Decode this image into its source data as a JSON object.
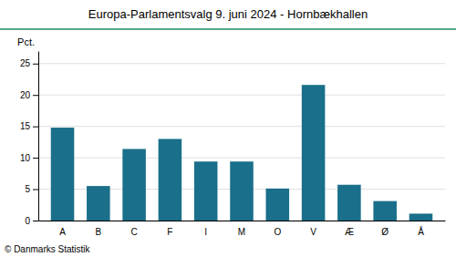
{
  "chart_data": {
    "type": "bar",
    "title": "Europa-Parlamentsvalg 9. juni 2024 - Hornbækhallen",
    "ylabel": "Pct.",
    "footer": "© Danmarks Statistik",
    "categories": [
      "A",
      "B",
      "C",
      "F",
      "I",
      "M",
      "O",
      "V",
      "Æ",
      "Ø",
      "Å"
    ],
    "values": [
      14.8,
      5.5,
      11.4,
      13.0,
      9.4,
      9.4,
      5.1,
      21.6,
      5.7,
      3.1,
      1.1
    ],
    "color": "#1a6f8a",
    "ylim": [
      0,
      27
    ],
    "yticks": [
      0,
      5,
      10,
      15,
      20,
      25
    ],
    "grid": true
  }
}
